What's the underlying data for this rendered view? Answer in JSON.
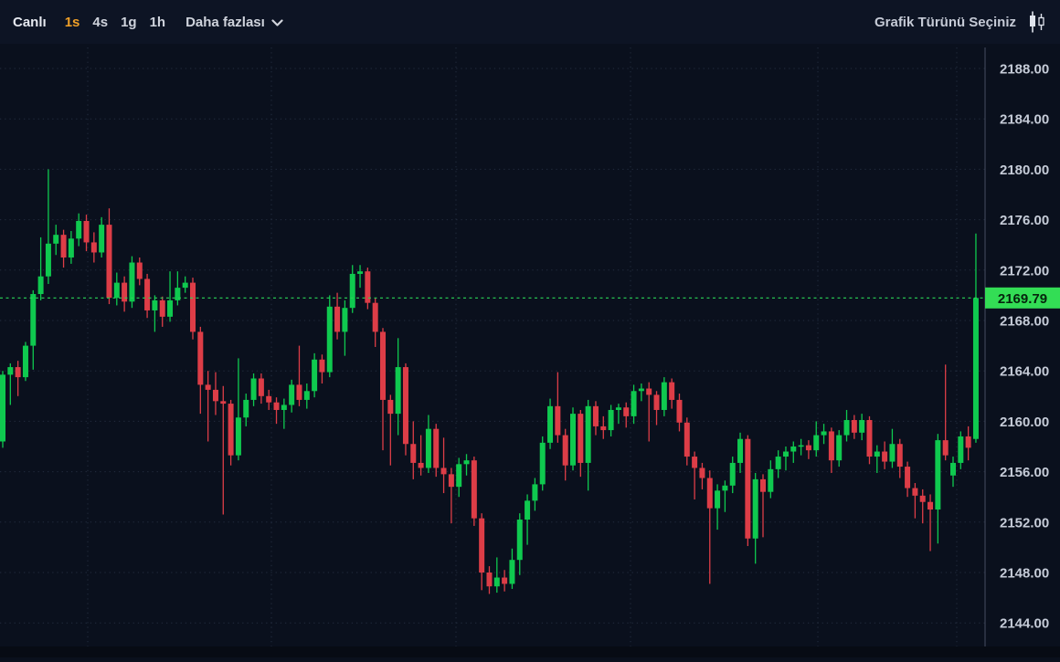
{
  "toolbar": {
    "live_label": "Canlı",
    "timeframes": [
      {
        "label": "1s",
        "active": true
      },
      {
        "label": "4s",
        "active": false
      },
      {
        "label": "1g",
        "active": false
      },
      {
        "label": "1h",
        "active": false
      }
    ],
    "more_label": "Daha fazlası",
    "chart_type_label": "Grafik Türünü Seçiniz"
  },
  "colors": {
    "background": "#0a101d",
    "topbar_bg": "#0d1424",
    "up": "#0fc94f",
    "down": "#dd3d47",
    "accent_orange": "#f0a028",
    "grid": "#39445a",
    "axis_line": "#3c4456",
    "axis_text": "#c6ccd8",
    "price_line": "#2bd457",
    "price_tag_bg": "#33dd55",
    "price_tag_text": "#06240d"
  },
  "chart_data": {
    "type": "candlestick",
    "title": "",
    "xlabel": "",
    "ylabel": "",
    "legend": [],
    "grid": true,
    "legend_position": "none",
    "y_axis": {
      "min": 2144,
      "max": 2188,
      "step": 4,
      "tick_labels": [
        "2188.00",
        "2184.00",
        "2180.00",
        "2176.00",
        "2172.00",
        "2168.00",
        "2164.00",
        "2160.00",
        "2156.00",
        "2152.00",
        "2148.00",
        "2144.00"
      ]
    },
    "current_price": "2169.79",
    "current_price_value": 2169.79,
    "vertical_gridlines_x": [
      96,
      297,
      499,
      690,
      895,
      1047
    ],
    "candles_format": [
      "open",
      "high",
      "low",
      "close"
    ],
    "candles": [
      [
        2158.4,
        2164.0,
        2157.9,
        2163.7
      ],
      [
        2163.7,
        2164.6,
        2161.3,
        2164.3
      ],
      [
        2164.3,
        2164.8,
        2162.0,
        2163.5
      ],
      [
        2163.5,
        2166.3,
        2163.2,
        2166.0
      ],
      [
        2166.0,
        2170.4,
        2164.1,
        2170.1
      ],
      [
        2170.1,
        2174.6,
        2169.6,
        2171.5
      ],
      [
        2171.5,
        2180.0,
        2170.9,
        2174.1
      ],
      [
        2174.1,
        2175.6,
        2173.2,
        2174.8
      ],
      [
        2174.8,
        2175.2,
        2172.2,
        2173.0
      ],
      [
        2173.0,
        2175.1,
        2172.5,
        2174.5
      ],
      [
        2174.5,
        2176.5,
        2173.9,
        2175.9
      ],
      [
        2175.9,
        2176.4,
        2173.5,
        2174.2
      ],
      [
        2174.2,
        2175.0,
        2172.6,
        2173.4
      ],
      [
        2173.4,
        2176.2,
        2173.0,
        2175.6
      ],
      [
        2175.6,
        2176.9,
        2169.3,
        2169.8
      ],
      [
        2169.8,
        2171.8,
        2169.2,
        2171.0
      ],
      [
        2171.0,
        2171.5,
        2168.7,
        2169.5
      ],
      [
        2169.5,
        2173.1,
        2169.0,
        2172.6
      ],
      [
        2172.6,
        2173.0,
        2170.8,
        2171.3
      ],
      [
        2171.3,
        2171.7,
        2168.2,
        2168.8
      ],
      [
        2168.8,
        2170.0,
        2167.1,
        2169.6
      ],
      [
        2169.6,
        2169.9,
        2167.5,
        2168.3
      ],
      [
        2168.3,
        2171.9,
        2167.9,
        2169.6
      ],
      [
        2169.6,
        2171.9,
        2169.2,
        2170.6
      ],
      [
        2170.6,
        2171.5,
        2170.2,
        2171.0
      ],
      [
        2171.0,
        2171.4,
        2166.5,
        2167.1
      ],
      [
        2167.1,
        2167.5,
        2160.6,
        2162.9
      ],
      [
        2162.9,
        2164.0,
        2158.4,
        2162.5
      ],
      [
        2162.5,
        2163.9,
        2160.5,
        2161.6
      ],
      [
        2161.6,
        2162.8,
        2152.6,
        2161.4
      ],
      [
        2161.4,
        2161.7,
        2156.5,
        2157.3
      ],
      [
        2157.3,
        2165.0,
        2156.9,
        2160.3
      ],
      [
        2160.3,
        2162.2,
        2159.6,
        2161.7
      ],
      [
        2161.7,
        2163.8,
        2161.2,
        2163.4
      ],
      [
        2163.4,
        2163.8,
        2161.4,
        2162.0
      ],
      [
        2162.0,
        2162.5,
        2160.9,
        2161.5
      ],
      [
        2161.5,
        2161.9,
        2159.8,
        2160.9
      ],
      [
        2160.9,
        2161.8,
        2159.4,
        2161.3
      ],
      [
        2161.3,
        2163.3,
        2160.7,
        2162.9
      ],
      [
        2162.9,
        2166.0,
        2161.2,
        2161.7
      ],
      [
        2161.7,
        2163.0,
        2161.0,
        2162.4
      ],
      [
        2162.4,
        2165.4,
        2161.9,
        2164.9
      ],
      [
        2164.9,
        2165.3,
        2163.0,
        2163.9
      ],
      [
        2163.9,
        2170.0,
        2163.5,
        2169.1
      ],
      [
        2169.1,
        2170.2,
        2166.5,
        2167.1
      ],
      [
        2167.1,
        2169.6,
        2165.2,
        2169.0
      ],
      [
        2169.0,
        2172.4,
        2168.6,
        2171.7
      ],
      [
        2171.7,
        2172.4,
        2170.6,
        2171.9
      ],
      [
        2171.9,
        2172.2,
        2168.9,
        2169.4
      ],
      [
        2169.4,
        2169.8,
        2165.9,
        2167.1
      ],
      [
        2167.1,
        2167.4,
        2157.7,
        2161.7
      ],
      [
        2161.7,
        2162.1,
        2156.5,
        2160.6
      ],
      [
        2160.6,
        2166.6,
        2158.9,
        2164.3
      ],
      [
        2164.3,
        2164.6,
        2157.3,
        2158.2
      ],
      [
        2158.2,
        2160.0,
        2155.4,
        2156.7
      ],
      [
        2156.7,
        2158.9,
        2155.7,
        2156.3
      ],
      [
        2156.3,
        2160.5,
        2155.9,
        2159.4
      ],
      [
        2159.4,
        2159.8,
        2155.6,
        2156.3
      ],
      [
        2156.3,
        2158.7,
        2154.3,
        2155.8
      ],
      [
        2155.8,
        2156.3,
        2151.9,
        2154.8
      ],
      [
        2154.8,
        2157.1,
        2154.0,
        2156.6
      ],
      [
        2156.6,
        2157.4,
        2155.7,
        2156.9
      ],
      [
        2156.9,
        2157.2,
        2151.7,
        2152.3
      ],
      [
        2152.3,
        2152.7,
        2146.6,
        2148.0
      ],
      [
        2148.0,
        2148.5,
        2146.3,
        2146.9
      ],
      [
        2146.9,
        2149.2,
        2146.4,
        2147.6
      ],
      [
        2147.6,
        2148.2,
        2146.5,
        2147.1
      ],
      [
        2147.1,
        2149.9,
        2146.7,
        2149.0
      ],
      [
        2149.0,
        2152.7,
        2147.8,
        2152.2
      ],
      [
        2152.2,
        2154.2,
        2150.2,
        2153.7
      ],
      [
        2153.7,
        2155.5,
        2152.9,
        2155.0
      ],
      [
        2155.0,
        2158.8,
        2154.5,
        2158.3
      ],
      [
        2158.3,
        2161.8,
        2157.8,
        2161.2
      ],
      [
        2161.2,
        2163.9,
        2158.3,
        2158.9
      ],
      [
        2158.9,
        2159.4,
        2155.3,
        2156.5
      ],
      [
        2156.5,
        2161.1,
        2156.1,
        2160.6
      ],
      [
        2160.6,
        2160.9,
        2155.6,
        2156.7
      ],
      [
        2156.7,
        2161.7,
        2154.5,
        2161.2
      ],
      [
        2161.2,
        2161.6,
        2158.9,
        2159.6
      ],
      [
        2159.6,
        2160.4,
        2158.6,
        2159.3
      ],
      [
        2159.3,
        2161.3,
        2158.8,
        2160.9
      ],
      [
        2160.9,
        2161.4,
        2159.8,
        2161.1
      ],
      [
        2161.1,
        2161.5,
        2159.5,
        2160.4
      ],
      [
        2160.4,
        2162.9,
        2159.8,
        2162.4
      ],
      [
        2162.4,
        2163.0,
        2161.6,
        2162.6
      ],
      [
        2162.6,
        2163.1,
        2158.4,
        2162.1
      ],
      [
        2162.1,
        2162.4,
        2159.7,
        2160.9
      ],
      [
        2160.9,
        2163.5,
        2160.4,
        2163.1
      ],
      [
        2163.1,
        2163.4,
        2161.0,
        2161.7
      ],
      [
        2161.7,
        2162.2,
        2159.2,
        2159.9
      ],
      [
        2159.9,
        2160.3,
        2156.5,
        2157.2
      ],
      [
        2157.2,
        2157.6,
        2153.8,
        2156.3
      ],
      [
        2156.3,
        2156.7,
        2154.6,
        2155.5
      ],
      [
        2155.5,
        2156.1,
        2147.1,
        2153.1
      ],
      [
        2153.1,
        2155.0,
        2151.4,
        2154.5
      ],
      [
        2154.5,
        2155.3,
        2152.8,
        2154.9
      ],
      [
        2154.9,
        2157.2,
        2154.3,
        2156.7
      ],
      [
        2156.7,
        2159.1,
        2155.9,
        2158.6
      ],
      [
        2158.6,
        2158.9,
        2150.1,
        2150.7
      ],
      [
        2150.7,
        2155.9,
        2148.7,
        2155.4
      ],
      [
        2155.4,
        2155.8,
        2150.8,
        2154.4
      ],
      [
        2154.4,
        2156.9,
        2153.9,
        2156.2
      ],
      [
        2156.2,
        2157.7,
        2155.5,
        2157.2
      ],
      [
        2157.2,
        2158.0,
        2156.1,
        2157.6
      ],
      [
        2157.6,
        2158.4,
        2156.7,
        2158.0
      ],
      [
        2158.0,
        2158.6,
        2157.3,
        2158.1
      ],
      [
        2158.1,
        2158.5,
        2157.0,
        2157.7
      ],
      [
        2157.7,
        2160.0,
        2157.2,
        2158.9
      ],
      [
        2158.9,
        2159.8,
        2158.2,
        2159.2
      ],
      [
        2159.2,
        2159.5,
        2155.9,
        2156.9
      ],
      [
        2156.9,
        2159.3,
        2156.4,
        2158.9
      ],
      [
        2158.9,
        2160.9,
        2158.4,
        2160.1
      ],
      [
        2160.1,
        2160.5,
        2158.6,
        2159.1
      ],
      [
        2159.1,
        2160.6,
        2158.5,
        2160.1
      ],
      [
        2160.1,
        2160.4,
        2156.6,
        2157.2
      ],
      [
        2157.2,
        2158.1,
        2155.9,
        2157.6
      ],
      [
        2157.6,
        2158.4,
        2156.2,
        2156.8
      ],
      [
        2156.8,
        2159.4,
        2156.3,
        2158.2
      ],
      [
        2158.2,
        2158.6,
        2155.5,
        2156.4
      ],
      [
        2156.4,
        2156.8,
        2154.0,
        2154.7
      ],
      [
        2154.7,
        2155.1,
        2152.3,
        2154.1
      ],
      [
        2154.1,
        2154.6,
        2151.9,
        2153.6
      ],
      [
        2153.6,
        2154.2,
        2149.7,
        2153.0
      ],
      [
        2153.0,
        2159.0,
        2150.3,
        2158.5
      ],
      [
        2158.5,
        2164.5,
        2156.9,
        2157.3
      ],
      [
        2155.7,
        2157.2,
        2154.8,
        2156.7
      ],
      [
        2156.7,
        2159.2,
        2156.2,
        2158.8
      ],
      [
        2158.8,
        2159.6,
        2156.9,
        2157.9
      ],
      [
        2158.6,
        2174.9,
        2158.3,
        2169.79
      ]
    ]
  }
}
